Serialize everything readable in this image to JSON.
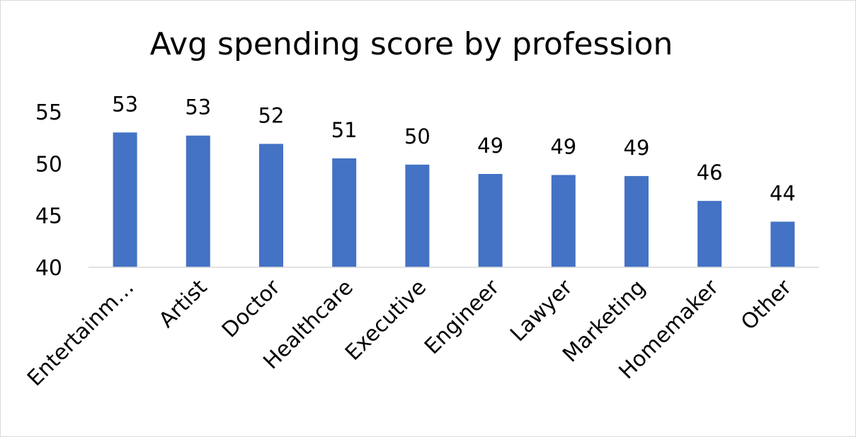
{
  "chart_data": {
    "type": "bar",
    "title": "Avg spending score by profession",
    "categories": [
      "Entertainm…",
      "Artist",
      "Doctor",
      "Healthcare",
      "Executive",
      "Engineer",
      "Lawyer",
      "Marketing",
      "Homemaker",
      "Other"
    ],
    "values": [
      53,
      52.7,
      51.9,
      50.5,
      49.9,
      49,
      48.9,
      48.8,
      46.4,
      44.4
    ],
    "data_labels": [
      "53",
      "53",
      "52",
      "51",
      "50",
      "49",
      "49",
      "49",
      "46",
      "44"
    ],
    "ylim": [
      40,
      55
    ],
    "yticks": [
      "40",
      "45",
      "50",
      "55"
    ],
    "ytick_values": [
      40,
      45,
      50,
      55
    ],
    "grid": false,
    "legend": "none",
    "bar_color": "#4472c4",
    "axis_color": "#d9d9d9"
  }
}
